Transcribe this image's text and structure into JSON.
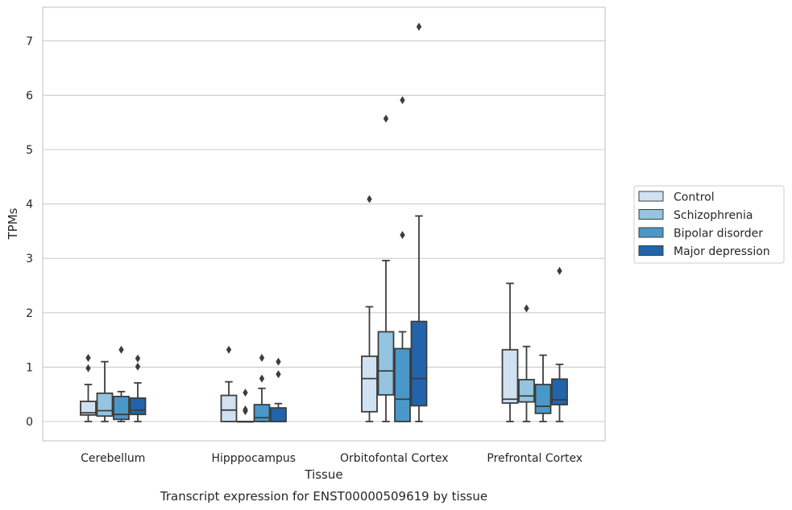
{
  "chart_data": {
    "type": "box",
    "xlabel": "Tissue",
    "ylabel": "TPMs",
    "caption": "Transcript expression for ENST00000509619 by tissue",
    "ylim": [
      -0.35,
      7.6
    ],
    "yticks": [
      0,
      1,
      2,
      3,
      4,
      5,
      6,
      7
    ],
    "grid": true,
    "legend_position": "right",
    "categories": [
      "Cerebellum",
      "Hipppocampus",
      "Orbitofontal Cortex",
      "Prefrontal Cortex"
    ],
    "series": [
      {
        "name": "Control",
        "color": "#d0e1f2",
        "boxes": [
          {
            "whislo": 0.0,
            "q1": 0.12,
            "med": 0.16,
            "q3": 0.37,
            "whishi": 0.68,
            "fliers": [
              0.98,
              1.17
            ]
          },
          {
            "whislo": 0.0,
            "q1": 0.0,
            "med": 0.21,
            "q3": 0.48,
            "whishi": 0.73,
            "fliers": [
              1.32
            ]
          },
          {
            "whislo": 0.0,
            "q1": 0.18,
            "med": 0.79,
            "q3": 1.2,
            "whishi": 2.11,
            "fliers": [
              4.09
            ]
          },
          {
            "whislo": 0.0,
            "q1": 0.34,
            "med": 0.41,
            "q3": 1.32,
            "whishi": 2.54,
            "fliers": []
          }
        ]
      },
      {
        "name": "Schizophrenia",
        "color": "#94c4df",
        "boxes": [
          {
            "whislo": 0.0,
            "q1": 0.1,
            "med": 0.2,
            "q3": 0.52,
            "whishi": 1.1,
            "fliers": []
          },
          {
            "whislo": 0.0,
            "q1": 0.0,
            "med": 0.0,
            "q3": 0.0,
            "whishi": 0.0,
            "fliers": [
              0.19,
              0.22,
              0.53
            ]
          },
          {
            "whislo": 0.0,
            "q1": 0.49,
            "med": 0.93,
            "q3": 1.65,
            "whishi": 2.96,
            "fliers": [
              5.57
            ]
          },
          {
            "whislo": 0.0,
            "q1": 0.36,
            "med": 0.47,
            "q3": 0.77,
            "whishi": 1.38,
            "fliers": [
              2.08
            ]
          }
        ]
      },
      {
        "name": "Bipolar disorder",
        "color": "#4a98c9",
        "boxes": [
          {
            "whislo": 0.0,
            "q1": 0.04,
            "med": 0.13,
            "q3": 0.46,
            "whishi": 0.55,
            "fliers": [
              1.32
            ]
          },
          {
            "whislo": 0.0,
            "q1": 0.0,
            "med": 0.07,
            "q3": 0.31,
            "whishi": 0.61,
            "fliers": [
              0.79,
              1.17
            ]
          },
          {
            "whislo": 0.0,
            "q1": 0.0,
            "med": 0.41,
            "q3": 1.34,
            "whishi": 1.65,
            "fliers": [
              3.43,
              5.91
            ]
          },
          {
            "whislo": 0.0,
            "q1": 0.15,
            "med": 0.28,
            "q3": 0.68,
            "whishi": 1.22,
            "fliers": []
          }
        ]
      },
      {
        "name": "Major depression",
        "color": "#2164ab",
        "boxes": [
          {
            "whislo": 0.0,
            "q1": 0.13,
            "med": 0.21,
            "q3": 0.43,
            "whishi": 0.71,
            "fliers": [
              1.01,
              1.16
            ]
          },
          {
            "whislo": 0.0,
            "q1": 0.0,
            "med": 0.0,
            "q3": 0.25,
            "whishi": 0.33,
            "fliers": [
              0.87,
              1.1
            ]
          },
          {
            "whislo": 0.0,
            "q1": 0.29,
            "med": 0.79,
            "q3": 1.84,
            "whishi": 3.78,
            "fliers": [
              7.26
            ]
          },
          {
            "whislo": 0.0,
            "q1": 0.31,
            "med": 0.4,
            "q3": 0.78,
            "whishi": 1.05,
            "fliers": [
              2.77
            ]
          }
        ]
      }
    ]
  }
}
